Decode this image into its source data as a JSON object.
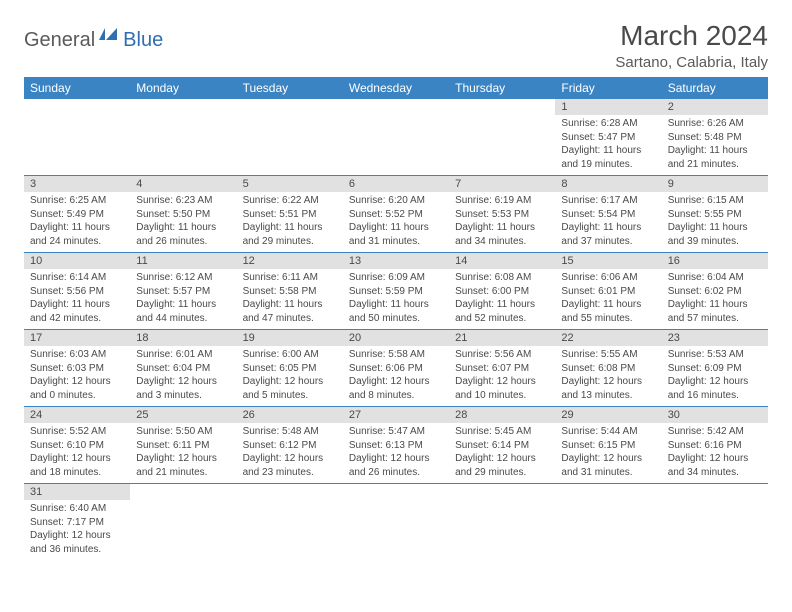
{
  "logo": {
    "part1": "General",
    "part2": "Blue"
  },
  "title": "March 2024",
  "location": "Sartano, Calabria, Italy",
  "colors": {
    "header_bg": "#3b84c4",
    "header_text": "#ffffff",
    "daynum_bg": "#e1e1e1",
    "text": "#4a4a4a",
    "divider": "#3b84c4"
  },
  "day_headers": [
    "Sunday",
    "Monday",
    "Tuesday",
    "Wednesday",
    "Thursday",
    "Friday",
    "Saturday"
  ],
  "weeks": [
    [
      null,
      null,
      null,
      null,
      null,
      {
        "n": "1",
        "sr": "Sunrise: 6:28 AM",
        "ss": "Sunset: 5:47 PM",
        "d1": "Daylight: 11 hours",
        "d2": "and 19 minutes."
      },
      {
        "n": "2",
        "sr": "Sunrise: 6:26 AM",
        "ss": "Sunset: 5:48 PM",
        "d1": "Daylight: 11 hours",
        "d2": "and 21 minutes."
      }
    ],
    [
      {
        "n": "3",
        "sr": "Sunrise: 6:25 AM",
        "ss": "Sunset: 5:49 PM",
        "d1": "Daylight: 11 hours",
        "d2": "and 24 minutes."
      },
      {
        "n": "4",
        "sr": "Sunrise: 6:23 AM",
        "ss": "Sunset: 5:50 PM",
        "d1": "Daylight: 11 hours",
        "d2": "and 26 minutes."
      },
      {
        "n": "5",
        "sr": "Sunrise: 6:22 AM",
        "ss": "Sunset: 5:51 PM",
        "d1": "Daylight: 11 hours",
        "d2": "and 29 minutes."
      },
      {
        "n": "6",
        "sr": "Sunrise: 6:20 AM",
        "ss": "Sunset: 5:52 PM",
        "d1": "Daylight: 11 hours",
        "d2": "and 31 minutes."
      },
      {
        "n": "7",
        "sr": "Sunrise: 6:19 AM",
        "ss": "Sunset: 5:53 PM",
        "d1": "Daylight: 11 hours",
        "d2": "and 34 minutes."
      },
      {
        "n": "8",
        "sr": "Sunrise: 6:17 AM",
        "ss": "Sunset: 5:54 PM",
        "d1": "Daylight: 11 hours",
        "d2": "and 37 minutes."
      },
      {
        "n": "9",
        "sr": "Sunrise: 6:15 AM",
        "ss": "Sunset: 5:55 PM",
        "d1": "Daylight: 11 hours",
        "d2": "and 39 minutes."
      }
    ],
    [
      {
        "n": "10",
        "sr": "Sunrise: 6:14 AM",
        "ss": "Sunset: 5:56 PM",
        "d1": "Daylight: 11 hours",
        "d2": "and 42 minutes."
      },
      {
        "n": "11",
        "sr": "Sunrise: 6:12 AM",
        "ss": "Sunset: 5:57 PM",
        "d1": "Daylight: 11 hours",
        "d2": "and 44 minutes."
      },
      {
        "n": "12",
        "sr": "Sunrise: 6:11 AM",
        "ss": "Sunset: 5:58 PM",
        "d1": "Daylight: 11 hours",
        "d2": "and 47 minutes."
      },
      {
        "n": "13",
        "sr": "Sunrise: 6:09 AM",
        "ss": "Sunset: 5:59 PM",
        "d1": "Daylight: 11 hours",
        "d2": "and 50 minutes."
      },
      {
        "n": "14",
        "sr": "Sunrise: 6:08 AM",
        "ss": "Sunset: 6:00 PM",
        "d1": "Daylight: 11 hours",
        "d2": "and 52 minutes."
      },
      {
        "n": "15",
        "sr": "Sunrise: 6:06 AM",
        "ss": "Sunset: 6:01 PM",
        "d1": "Daylight: 11 hours",
        "d2": "and 55 minutes."
      },
      {
        "n": "16",
        "sr": "Sunrise: 6:04 AM",
        "ss": "Sunset: 6:02 PM",
        "d1": "Daylight: 11 hours",
        "d2": "and 57 minutes."
      }
    ],
    [
      {
        "n": "17",
        "sr": "Sunrise: 6:03 AM",
        "ss": "Sunset: 6:03 PM",
        "d1": "Daylight: 12 hours",
        "d2": "and 0 minutes."
      },
      {
        "n": "18",
        "sr": "Sunrise: 6:01 AM",
        "ss": "Sunset: 6:04 PM",
        "d1": "Daylight: 12 hours",
        "d2": "and 3 minutes."
      },
      {
        "n": "19",
        "sr": "Sunrise: 6:00 AM",
        "ss": "Sunset: 6:05 PM",
        "d1": "Daylight: 12 hours",
        "d2": "and 5 minutes."
      },
      {
        "n": "20",
        "sr": "Sunrise: 5:58 AM",
        "ss": "Sunset: 6:06 PM",
        "d1": "Daylight: 12 hours",
        "d2": "and 8 minutes."
      },
      {
        "n": "21",
        "sr": "Sunrise: 5:56 AM",
        "ss": "Sunset: 6:07 PM",
        "d1": "Daylight: 12 hours",
        "d2": "and 10 minutes."
      },
      {
        "n": "22",
        "sr": "Sunrise: 5:55 AM",
        "ss": "Sunset: 6:08 PM",
        "d1": "Daylight: 12 hours",
        "d2": "and 13 minutes."
      },
      {
        "n": "23",
        "sr": "Sunrise: 5:53 AM",
        "ss": "Sunset: 6:09 PM",
        "d1": "Daylight: 12 hours",
        "d2": "and 16 minutes."
      }
    ],
    [
      {
        "n": "24",
        "sr": "Sunrise: 5:52 AM",
        "ss": "Sunset: 6:10 PM",
        "d1": "Daylight: 12 hours",
        "d2": "and 18 minutes."
      },
      {
        "n": "25",
        "sr": "Sunrise: 5:50 AM",
        "ss": "Sunset: 6:11 PM",
        "d1": "Daylight: 12 hours",
        "d2": "and 21 minutes."
      },
      {
        "n": "26",
        "sr": "Sunrise: 5:48 AM",
        "ss": "Sunset: 6:12 PM",
        "d1": "Daylight: 12 hours",
        "d2": "and 23 minutes."
      },
      {
        "n": "27",
        "sr": "Sunrise: 5:47 AM",
        "ss": "Sunset: 6:13 PM",
        "d1": "Daylight: 12 hours",
        "d2": "and 26 minutes."
      },
      {
        "n": "28",
        "sr": "Sunrise: 5:45 AM",
        "ss": "Sunset: 6:14 PM",
        "d1": "Daylight: 12 hours",
        "d2": "and 29 minutes."
      },
      {
        "n": "29",
        "sr": "Sunrise: 5:44 AM",
        "ss": "Sunset: 6:15 PM",
        "d1": "Daylight: 12 hours",
        "d2": "and 31 minutes."
      },
      {
        "n": "30",
        "sr": "Sunrise: 5:42 AM",
        "ss": "Sunset: 6:16 PM",
        "d1": "Daylight: 12 hours",
        "d2": "and 34 minutes."
      }
    ],
    [
      {
        "n": "31",
        "sr": "Sunrise: 6:40 AM",
        "ss": "Sunset: 7:17 PM",
        "d1": "Daylight: 12 hours",
        "d2": "and 36 minutes."
      },
      null,
      null,
      null,
      null,
      null,
      null
    ]
  ]
}
